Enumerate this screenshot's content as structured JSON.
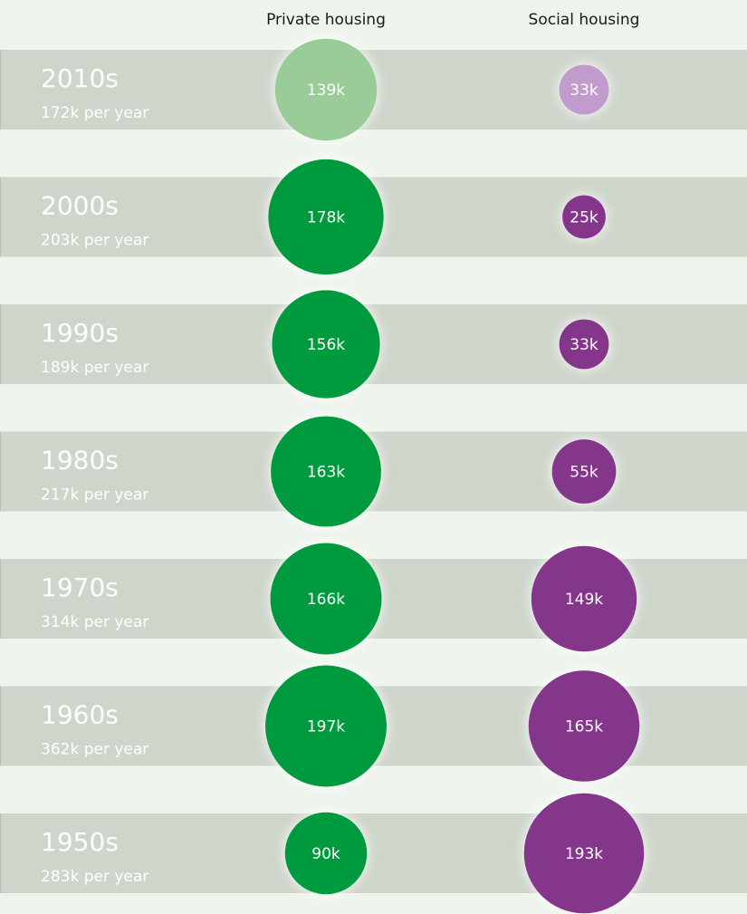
{
  "chart_data": {
    "type": "bubble",
    "categories": [
      "2010s",
      "2000s",
      "1990s",
      "1980s",
      "1970s",
      "1960s",
      "1950s"
    ],
    "row_labels": [
      "172k per year",
      "203k per year",
      "189k per year",
      "217k per year",
      "314k per year",
      "362k per year",
      "283k per year"
    ],
    "series": [
      {
        "name": "Private housing",
        "color": "#009a3e",
        "colors": [
          "#99cc99",
          "#009a3e",
          "#009a3e",
          "#009a3e",
          "#009a3e",
          "#009a3e",
          "#009a3e"
        ],
        "values": [
          139,
          178,
          156,
          163,
          166,
          197,
          90
        ],
        "value_labels": [
          "139k",
          "178k",
          "156k",
          "163k",
          "166k",
          "197k",
          "90k"
        ]
      },
      {
        "name": "Social housing",
        "color": "#84368b",
        "colors": [
          "#c09bcc",
          "#84368b",
          "#84368b",
          "#84368b",
          "#84368b",
          "#84368b",
          "#84368b"
        ],
        "values": [
          33,
          25,
          33,
          55,
          149,
          165,
          193
        ],
        "value_labels": [
          "33k",
          "25k",
          "33k",
          "55k",
          "149k",
          "165k",
          "193k"
        ]
      }
    ]
  }
}
